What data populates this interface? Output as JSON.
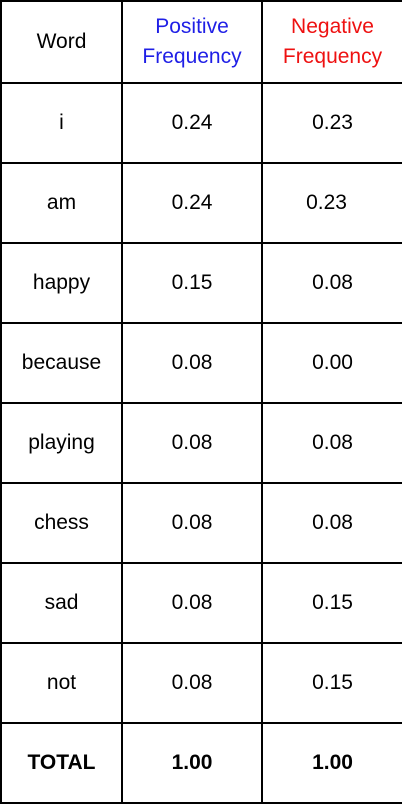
{
  "colors": {
    "positive_header": "#1f1fe6",
    "negative_header": "#ee1111",
    "border": "#000000",
    "text": "#000000"
  },
  "headers": {
    "word": "Word",
    "positive": [
      "Positive",
      "Frequency"
    ],
    "negative": [
      "Negative",
      "Frequency"
    ]
  },
  "rows": [
    {
      "word": "i",
      "positive": "0.24",
      "negative": "0.23"
    },
    {
      "word": "am",
      "positive": "0.24",
      "negative": "0.23"
    },
    {
      "word": "happy",
      "positive": "0.15",
      "negative": "0.08"
    },
    {
      "word": "because",
      "positive": "0.08",
      "negative": "0.00"
    },
    {
      "word": "playing",
      "positive": "0.08",
      "negative": "0.08"
    },
    {
      "word": "chess",
      "positive": "0.08",
      "negative": "0.08"
    },
    {
      "word": "sad",
      "positive": "0.08",
      "negative": "0.15"
    },
    {
      "word": "not",
      "positive": "0.08",
      "negative": "0.15"
    }
  ],
  "total": {
    "label": "TOTAL",
    "positive": "1.00",
    "negative": "1.00"
  }
}
